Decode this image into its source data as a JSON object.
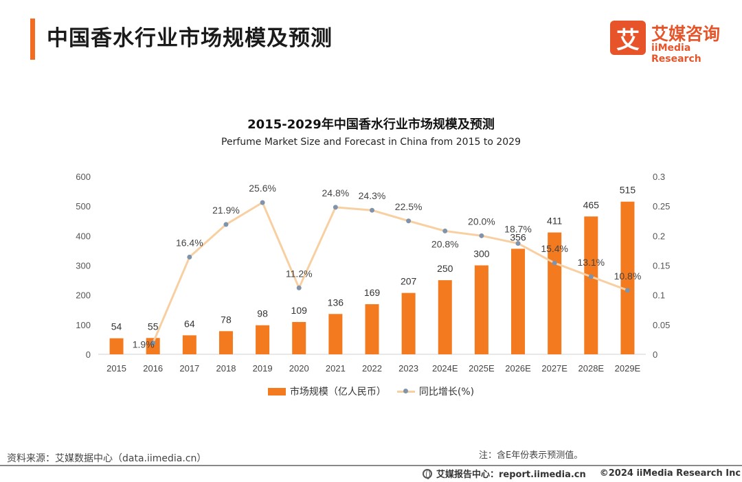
{
  "header": {
    "title": "中国香水行业市场规模及预测",
    "accent_color": "#f26b21"
  },
  "brand": {
    "logo_char": "艾",
    "name": "艾媒咨询",
    "sub": "iiMedia Research",
    "color": "#e8542a",
    "icon": "iimedia-logo-icon"
  },
  "chart_data": {
    "type": "bar",
    "title": "2015-2029年中国香水行业市场规模及预测",
    "subtitle": "Perfume Market Size and Forecast in China from 2015 to 2029",
    "categories": [
      "2015",
      "2016",
      "2017",
      "2018",
      "2019",
      "2020",
      "2021",
      "2022",
      "2023",
      "2024E",
      "2025E",
      "2026E",
      "2027E",
      "2028E",
      "2029E"
    ],
    "series": [
      {
        "name": "市场规模（亿人民币）",
        "type": "bar",
        "axis": "left",
        "color": "#f47a1f",
        "values": [
          54,
          55,
          64,
          78,
          98,
          109,
          136,
          169,
          207,
          250,
          300,
          356,
          411,
          465,
          515
        ],
        "labels": [
          "54",
          "55",
          "64",
          "78",
          "98",
          "109",
          "136",
          "169",
          "207",
          "250",
          "300",
          "356",
          "411",
          "465",
          "515"
        ]
      },
      {
        "name": "同比增长(%)",
        "type": "line",
        "axis": "right",
        "color": "#f8cfa0",
        "marker_color": "#7f93ab",
        "values": [
          null,
          0.019,
          0.164,
          0.219,
          0.256,
          0.112,
          0.248,
          0.243,
          0.225,
          0.208,
          0.2,
          0.187,
          0.154,
          0.131,
          0.108
        ],
        "labels": [
          "",
          "1.9%",
          "16.4%",
          "21.9%",
          "25.6%",
          "11.2%",
          "24.8%",
          "24.3%",
          "22.5%",
          "20.8%",
          "20.0%",
          "18.7%",
          "15.4%",
          "13.1%",
          "10.8%"
        ]
      }
    ],
    "y_left": {
      "min": 0,
      "max": 600,
      "ticks": [
        "0",
        "100",
        "200",
        "300",
        "400",
        "500",
        "600"
      ]
    },
    "y_right": {
      "min": 0,
      "max": 0.3,
      "ticks": [
        "0",
        "0.05",
        "0.1",
        "0.15",
        "0.2",
        "0.25",
        "0.3"
      ]
    },
    "grid": false,
    "legend_position": "bottom"
  },
  "footer": {
    "source": "资料来源：艾媒数据中心（data.iimedia.cn）",
    "note": "注：含E年份表示预测值。",
    "report": "艾媒报告中心：report.iimedia.cn",
    "copyright": "©2024  iiMedia Research  Inc",
    "icon": "globe-icon"
  }
}
